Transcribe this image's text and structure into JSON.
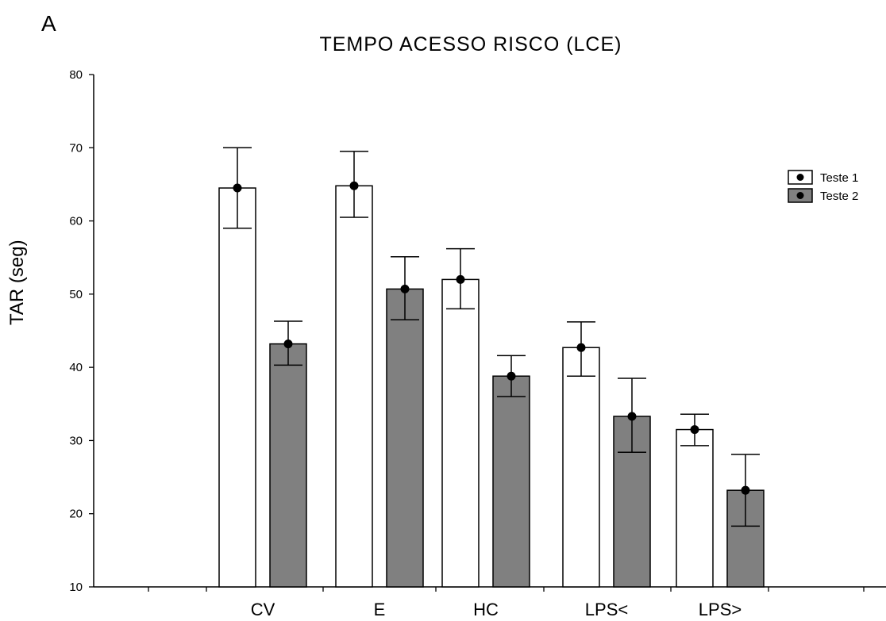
{
  "panel_label": "A",
  "chart_data": {
    "type": "bar",
    "title": "TEMPO ACESSO  RISCO (LCE)",
    "xlabel": "",
    "ylabel": "TAR (seg)",
    "ylim": [
      10,
      80
    ],
    "yticks": [
      10,
      20,
      30,
      40,
      50,
      60,
      70,
      80
    ],
    "categories": [
      "CV",
      "E",
      "HC",
      "LPS<",
      "LPS>"
    ],
    "series": [
      {
        "name": "Teste 1",
        "color": "#ffffff",
        "values": [
          64.5,
          64.8,
          52.0,
          42.7,
          31.5
        ],
        "err_low": [
          59.0,
          60.5,
          48.0,
          38.8,
          29.3
        ],
        "err_high": [
          70.0,
          69.5,
          56.2,
          46.2,
          33.6
        ]
      },
      {
        "name": "Teste 2",
        "color": "#808080",
        "values": [
          43.2,
          50.7,
          38.8,
          33.3,
          23.2
        ],
        "err_low": [
          40.3,
          46.5,
          36.0,
          28.4,
          18.3
        ],
        "err_high": [
          46.3,
          55.1,
          41.6,
          38.5,
          28.1
        ]
      }
    ],
    "legend_position": "top-right",
    "grid": false
  }
}
